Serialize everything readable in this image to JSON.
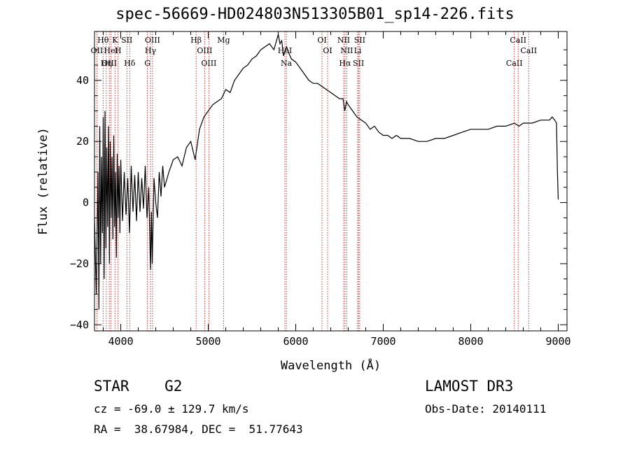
{
  "chart_data": {
    "type": "line",
    "title": "spec-56669-HD024803N513305B01_sp14-226.fits",
    "xlabel": "Wavelength (Å)",
    "ylabel": "Flux (relative)",
    "xlim": [
      3700,
      9100
    ],
    "ylim": [
      -42,
      56
    ],
    "xticks": [
      4000,
      5000,
      6000,
      7000,
      8000,
      9000
    ],
    "yticks": [
      -40,
      -20,
      0,
      20,
      40
    ],
    "series": [
      {
        "name": "spectrum",
        "x": [
          3700,
          3720,
          3740,
          3750,
          3760,
          3770,
          3780,
          3790,
          3800,
          3810,
          3820,
          3830,
          3840,
          3850,
          3860,
          3870,
          3880,
          3890,
          3900,
          3910,
          3920,
          3930,
          3940,
          3950,
          3960,
          3970,
          3980,
          3990,
          4000,
          4020,
          4040,
          4060,
          4080,
          4100,
          4120,
          4140,
          4160,
          4180,
          4200,
          4220,
          4240,
          4260,
          4280,
          4300,
          4320,
          4340,
          4350,
          4360,
          4380,
          4400,
          4420,
          4440,
          4460,
          4480,
          4500,
          4550,
          4600,
          4650,
          4700,
          4750,
          4800,
          4850,
          4860,
          4900,
          4950,
          5000,
          5050,
          5100,
          5150,
          5200,
          5250,
          5300,
          5350,
          5400,
          5450,
          5500,
          5550,
          5600,
          5650,
          5700,
          5750,
          5800,
          5820,
          5840,
          5860,
          5880,
          5895,
          5920,
          5950,
          6000,
          6050,
          6100,
          6150,
          6200,
          6250,
          6300,
          6350,
          6400,
          6450,
          6500,
          6540,
          6560,
          6580,
          6600,
          6650,
          6700,
          6750,
          6800,
          6850,
          6900,
          6950,
          7000,
          7050,
          7100,
          7150,
          7200,
          7300,
          7400,
          7500,
          7600,
          7700,
          7800,
          7900,
          8000,
          8100,
          8200,
          8300,
          8400,
          8500,
          8550,
          8600,
          8700,
          8800,
          8900,
          8930,
          8960,
          8980,
          8990,
          9000
        ],
        "y": [
          -5,
          -30,
          10,
          -35,
          25,
          -20,
          15,
          -10,
          28,
          -25,
          30,
          -15,
          18,
          -8,
          25,
          -20,
          20,
          -5,
          15,
          -12,
          22,
          -8,
          10,
          -18,
          16,
          -5,
          12,
          -10,
          14,
          -6,
          10,
          -4,
          8,
          -10,
          12,
          -3,
          9,
          -6,
          10,
          -3,
          8,
          -2,
          12,
          -5,
          5,
          -22,
          -3,
          -20,
          8,
          0,
          -5,
          10,
          2,
          12,
          5,
          10,
          14,
          15,
          12,
          18,
          20,
          14,
          16,
          24,
          28,
          30,
          32,
          33,
          34,
          37,
          36,
          40,
          42,
          44,
          45,
          47,
          48,
          50,
          51,
          52,
          50,
          55,
          52,
          53,
          48,
          50,
          51,
          49,
          47,
          46,
          44,
          42,
          40,
          39,
          39,
          38,
          37,
          36,
          35,
          34,
          34,
          30,
          33,
          32,
          30,
          28,
          27,
          26,
          24,
          25,
          23,
          22,
          22,
          21,
          22,
          21,
          21,
          20,
          20,
          21,
          21,
          22,
          23,
          24,
          24,
          24,
          25,
          25,
          26,
          25,
          26,
          26,
          27,
          27,
          28,
          27,
          26,
          10,
          1
        ]
      }
    ],
    "line_markers": [
      {
        "label": "Hθ",
        "x": 3798
      },
      {
        "label": "OII",
        "x": 3727
      },
      {
        "label": "OIII",
        "x": 3869
      },
      {
        "label": "K",
        "x": 3934
      },
      {
        "label": "HeI",
        "x": 3889
      },
      {
        "label": "Hη",
        "x": 3835
      },
      {
        "label": "SII",
        "x": 4070
      },
      {
        "label": "H",
        "x": 3969
      },
      {
        "label": "Hδ",
        "x": 4102
      },
      {
        "label": "OIII",
        "x": 4363
      },
      {
        "label": "Hγ",
        "x": 4340
      },
      {
        "label": "G",
        "x": 4305
      },
      {
        "label": "Hβ",
        "x": 4861
      },
      {
        "label": "OIII",
        "x": 4959
      },
      {
        "label": "OIII",
        "x": 5007
      },
      {
        "label": "Mg",
        "x": 5175
      },
      {
        "label": "HeI",
        "x": 5876
      },
      {
        "label": "Na",
        "x": 5893
      },
      {
        "label": "OI",
        "x": 6300
      },
      {
        "label": "OI",
        "x": 6364
      },
      {
        "label": "Hα",
        "x": 6563
      },
      {
        "label": "NII",
        "x": 6548
      },
      {
        "label": "NII",
        "x": 6583
      },
      {
        "label": "SII",
        "x": 6717
      },
      {
        "label": "SII",
        "x": 6731
      },
      {
        "label": "Li",
        "x": 6708
      },
      {
        "label": "CaII",
        "x": 8498
      },
      {
        "label": "CaII",
        "x": 8542
      },
      {
        "label": "CaII",
        "x": 8662
      }
    ]
  },
  "info": {
    "class_line": "STAR    G2",
    "survey": "LAMOST DR3",
    "cz_line": "cz = -69.0 ± 129.7 km/s",
    "obs_date": "Obs-Date: 20140111",
    "radec": "RA =  38.67984, DEC =  51.77643"
  }
}
